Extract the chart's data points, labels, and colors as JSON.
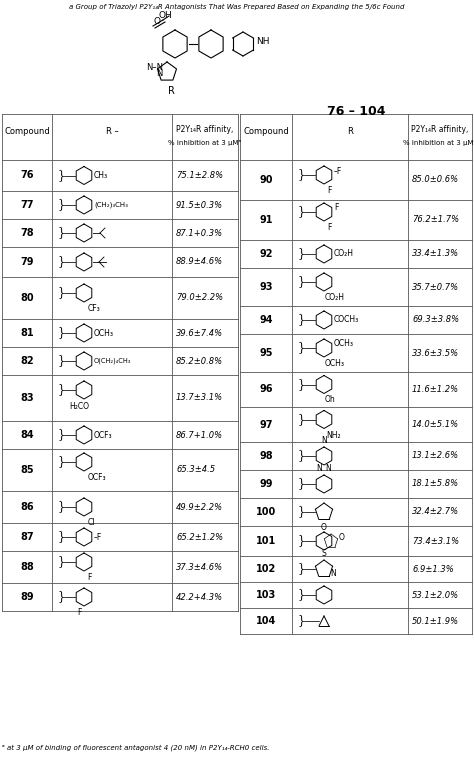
{
  "title_top": "a Group of Triazolyl P2Y₁₄R Antagonists That Was Prepared Based on Expanding the 5/6c Found",
  "header76_104": "76 – 104",
  "left_rows": [
    {
      "num": "76",
      "affinity": "75.1±2.8%"
    },
    {
      "num": "77",
      "affinity": "91.5±0.3%"
    },
    {
      "num": "78",
      "affinity": "87.1+0.3%"
    },
    {
      "num": "79",
      "affinity": "88.9±4.6%"
    },
    {
      "num": "80",
      "affinity": "79.0±2.2%"
    },
    {
      "num": "81",
      "affinity": "39.6±7.4%"
    },
    {
      "num": "82",
      "affinity": "85.2±0.8%"
    },
    {
      "num": "83",
      "affinity": "13.7±3.1%"
    },
    {
      "num": "84",
      "affinity": "86.7+1.0%"
    },
    {
      "num": "85",
      "affinity": "65.3±4.5"
    },
    {
      "num": "86",
      "affinity": "49.9±2.2%"
    },
    {
      "num": "87",
      "affinity": "65.2±1.2%"
    },
    {
      "num": "88",
      "affinity": "37.3±4.6%"
    },
    {
      "num": "89",
      "affinity": "42.2+4.3%"
    }
  ],
  "right_rows": [
    {
      "num": "90",
      "affinity": "85.0±0.6%"
    },
    {
      "num": "91",
      "affinity": "76.2±1.7%"
    },
    {
      "num": "92",
      "affinity": "33.4±1.3%"
    },
    {
      "num": "93",
      "affinity": "35.7±0.7%"
    },
    {
      "num": "94",
      "affinity": "69.3±3.8%"
    },
    {
      "num": "95",
      "affinity": "33.6±3.5%"
    },
    {
      "num": "96",
      "affinity": "11.6±1.2%"
    },
    {
      "num": "97",
      "affinity": "14.0±5.1%"
    },
    {
      "num": "98",
      "affinity": "13.1±2.6%"
    },
    {
      "num": "99",
      "affinity": "18.1±5.8%"
    },
    {
      "num": "100",
      "affinity": "32.4±2.7%"
    },
    {
      "num": "101",
      "affinity": "73.4±3.1%"
    },
    {
      "num": "102",
      "affinity": "6.9±1.3%"
    },
    {
      "num": "103",
      "affinity": "53.1±2.0%"
    },
    {
      "num": "104",
      "affinity": "50.1±1.9%"
    }
  ],
  "footnote": "ᵃ at 3 μM of binding of fluorescent antagonist 4 (20 nM) in P2Y₁₄-RCH0 cells.",
  "bg_color": "#ffffff",
  "lc": "#555555",
  "lw": 0.6
}
